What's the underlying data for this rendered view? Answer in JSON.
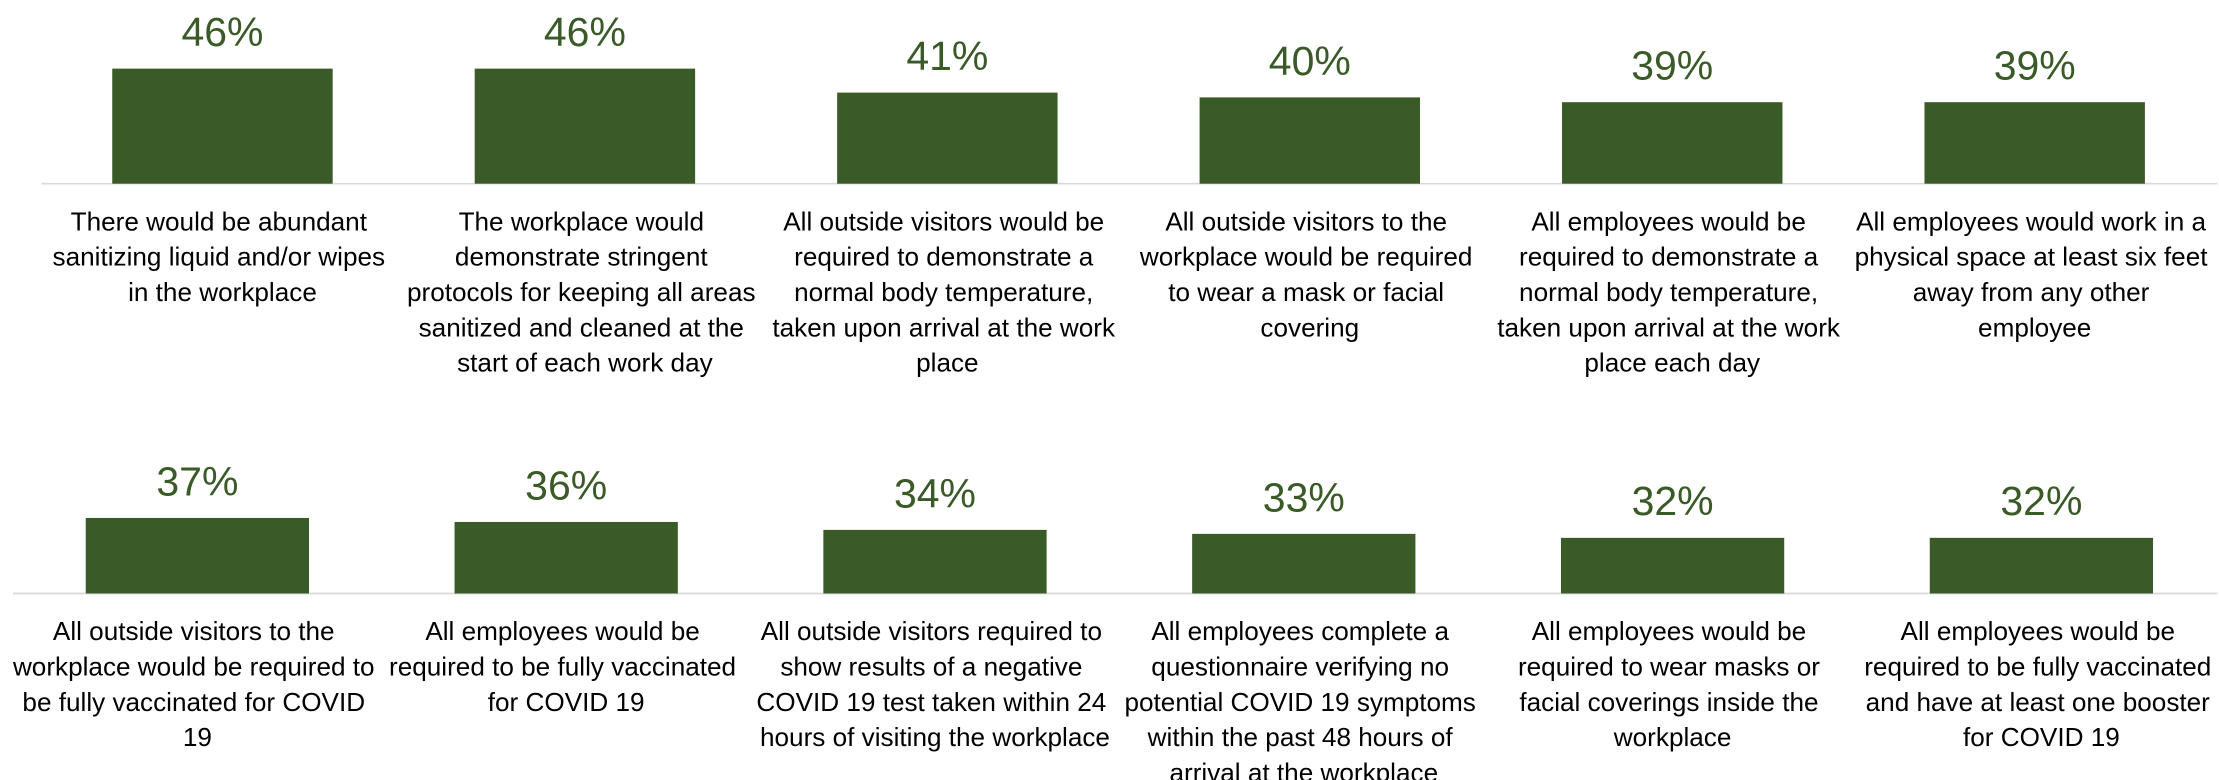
{
  "chart_data": [
    {
      "type": "bar",
      "color": "#3a5a27",
      "ylim": [
        22,
        50
      ],
      "categories": [
        "There would be abundant sanitizing liquid and/or wipes in the workplace",
        "The workplace would demonstrate stringent protocols for keeping all areas sanitized and cleaned at the start of each work day",
        "All outside visitors would be required to demonstrate a normal body temperature, taken upon arrival at the work place",
        "All outside visitors to the workplace would be required to wear a mask or facial covering",
        "All employees would be required to demonstrate a normal body temperature, taken upon arrival at the work place each day",
        "All employees would work in a physical space at least six feet away from any other employee"
      ],
      "values": [
        46,
        46,
        41,
        40,
        39,
        39
      ],
      "value_labels": [
        "46%",
        "46%",
        "41%",
        "40%",
        "39%",
        "39%"
      ]
    },
    {
      "type": "bar",
      "color": "#3a5a27",
      "ylim": [
        18,
        50
      ],
      "categories": [
        "All outside visitors to the workplace would be required to be fully vaccinated for COVID 19",
        "All employees would be required to be fully vaccinated for COVID 19",
        "All outside visitors  required to show results of a negative COVID 19 test taken within 24 hours of visiting the workplace",
        "All employees complete a questionnaire verifying no potential COVID 19 symptoms within the past 48 hours of arrival at the workplace",
        "All employees would be required to wear masks or facial coverings inside the workplace",
        "All employees would be required to be fully vaccinated and have at least one booster for COVID 19"
      ],
      "values": [
        37,
        36,
        34,
        33,
        32,
        32
      ],
      "value_labels": [
        "37%",
        "36%",
        "34%",
        "33%",
        "32%",
        "32%"
      ]
    }
  ]
}
